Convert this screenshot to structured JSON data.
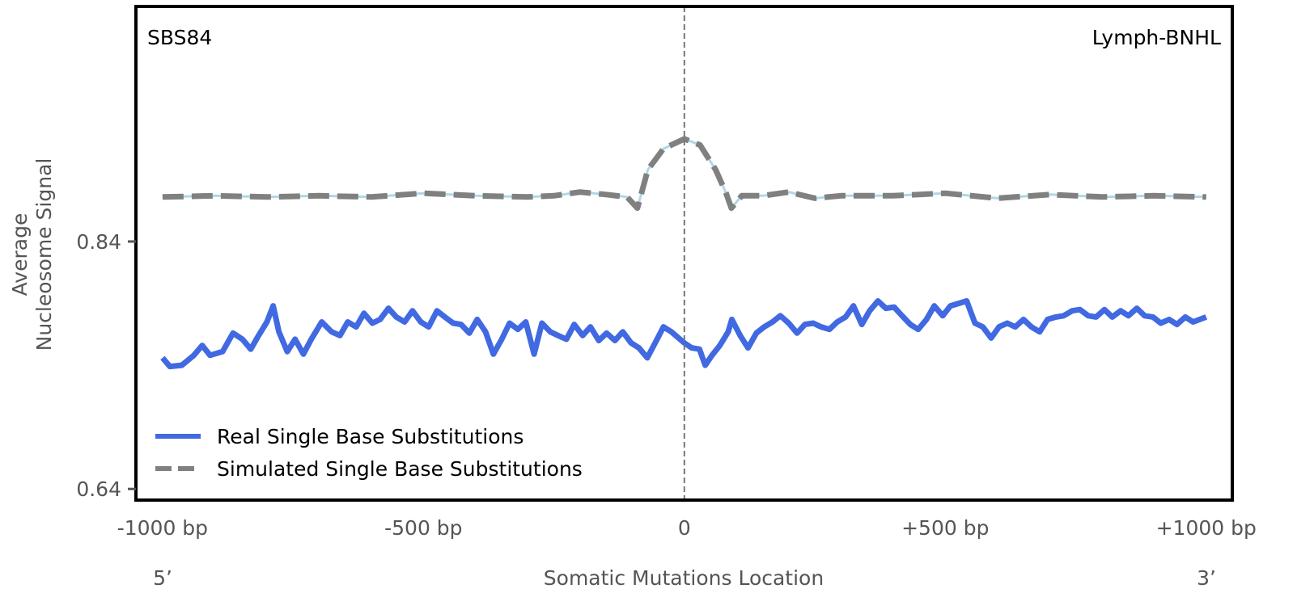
{
  "chart_data": {
    "type": "line",
    "panel_label": "SBS84",
    "cancer_type": "Lymph-BNHL",
    "xlabel": "Somatic Mutations Location",
    "ylabel_line1": "Average",
    "ylabel_line2": "Nucleosome Signal",
    "x_end_left": "5’",
    "x_end_right": "3’",
    "xlim": [
      -1051,
      1050
    ],
    "ylim": [
      0.631,
      1.03
    ],
    "x_ticks": [
      {
        "value": -1000,
        "label": "-1000 bp"
      },
      {
        "value": -500,
        "label": "-500 bp"
      },
      {
        "value": 0,
        "label": "0"
      },
      {
        "value": 500,
        "label": "+500 bp"
      },
      {
        "value": 1000,
        "label": "+1000 bp"
      }
    ],
    "y_ticks": [
      {
        "value": 0.84,
        "label": "0.84"
      },
      {
        "value": 0.64,
        "label": "0.64"
      }
    ],
    "center_line": 0,
    "legend_position": "bottom-left",
    "series": [
      {
        "name": "Real Single Base Substitutions",
        "color": "#4169e1",
        "style": "solid",
        "x": [
          -1000,
          -986,
          -963,
          -940,
          -924,
          -909,
          -885,
          -865,
          -847,
          -831,
          -816,
          -800,
          -788,
          -777,
          -761,
          -746,
          -730,
          -715,
          -695,
          -676,
          -660,
          -645,
          -629,
          -614,
          -598,
          -583,
          -567,
          -552,
          -536,
          -521,
          -505,
          -490,
          -474,
          -459,
          -443,
          -428,
          -412,
          -397,
          -381,
          -366,
          -350,
          -335,
          -319,
          -304,
          -288,
          -273,
          -257,
          -242,
          -226,
          -211,
          -195,
          -180,
          -164,
          -149,
          -133,
          -118,
          -102,
          -87,
          -71,
          -56,
          -40,
          -25,
          0,
          14,
          29,
          40,
          53,
          68,
          84,
          91,
          107,
          122,
          138,
          153,
          169,
          184,
          200,
          216,
          231,
          247,
          262,
          278,
          293,
          309,
          324,
          340,
          355,
          371,
          386,
          402,
          417,
          433,
          448,
          464,
          479,
          495,
          510,
          526,
          541,
          557,
          572,
          588,
          603,
          619,
          634,
          650,
          665,
          681,
          696,
          712,
          727,
          743,
          758,
          774,
          789,
          805,
          820,
          836,
          851,
          867,
          882,
          898,
          913,
          929,
          944,
          960,
          975,
          1000
        ],
        "y": [
          0.746,
          0.739,
          0.74,
          0.748,
          0.756,
          0.748,
          0.751,
          0.766,
          0.761,
          0.753,
          0.764,
          0.775,
          0.788,
          0.767,
          0.751,
          0.761,
          0.749,
          0.761,
          0.775,
          0.767,
          0.764,
          0.775,
          0.771,
          0.782,
          0.774,
          0.777,
          0.786,
          0.779,
          0.775,
          0.784,
          0.775,
          0.771,
          0.784,
          0.779,
          0.774,
          0.773,
          0.766,
          0.777,
          0.767,
          0.749,
          0.761,
          0.774,
          0.769,
          0.775,
          0.749,
          0.774,
          0.767,
          0.764,
          0.761,
          0.773,
          0.764,
          0.771,
          0.76,
          0.766,
          0.76,
          0.767,
          0.758,
          0.754,
          0.746,
          0.758,
          0.771,
          0.767,
          0.758,
          0.754,
          0.753,
          0.74,
          0.748,
          0.756,
          0.767,
          0.777,
          0.764,
          0.754,
          0.766,
          0.771,
          0.775,
          0.78,
          0.774,
          0.766,
          0.773,
          0.774,
          0.771,
          0.769,
          0.775,
          0.779,
          0.788,
          0.773,
          0.784,
          0.792,
          0.786,
          0.787,
          0.78,
          0.773,
          0.769,
          0.777,
          0.788,
          0.78,
          0.788,
          0.79,
          0.792,
          0.774,
          0.771,
          0.762,
          0.771,
          0.774,
          0.771,
          0.777,
          0.771,
          0.767,
          0.777,
          0.779,
          0.78,
          0.784,
          0.785,
          0.78,
          0.779,
          0.785,
          0.779,
          0.784,
          0.78,
          0.786,
          0.78,
          0.779,
          0.774,
          0.777,
          0.773,
          0.779,
          0.775,
          0.779
        ]
      },
      {
        "name": "Simulated Single Base Substitutions",
        "color": "#808080",
        "underlay_color": "#add8e6",
        "style": "dashed",
        "x": [
          -1000,
          -900,
          -800,
          -700,
          -600,
          -500,
          -400,
          -300,
          -250,
          -200,
          -150,
          -110,
          -90,
          -70,
          -40,
          0,
          30,
          60,
          80,
          90,
          110,
          150,
          200,
          250,
          300,
          400,
          500,
          600,
          700,
          800,
          900,
          1000
        ],
        "y": [
          0.876,
          0.877,
          0.876,
          0.877,
          0.876,
          0.879,
          0.877,
          0.876,
          0.877,
          0.88,
          0.878,
          0.876,
          0.867,
          0.898,
          0.915,
          0.923,
          0.918,
          0.898,
          0.879,
          0.867,
          0.877,
          0.877,
          0.88,
          0.875,
          0.877,
          0.877,
          0.879,
          0.875,
          0.878,
          0.876,
          0.877,
          0.876
        ]
      }
    ]
  }
}
